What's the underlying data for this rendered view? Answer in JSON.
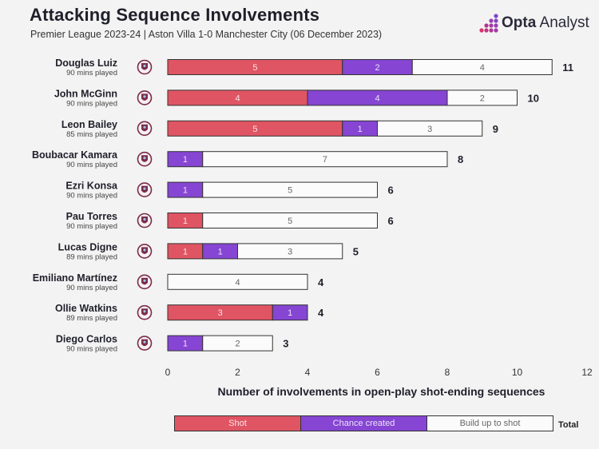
{
  "title": "Attacking Sequence Involvements",
  "subtitle": "Premier League 2023-24 | Aston Villa 1-0 Manchester City (06 December 2023)",
  "brand": {
    "bold": "Opta",
    "rest": "Analyst",
    "icon": "opta-dots-logo"
  },
  "colors": {
    "shot": "#e05563",
    "chance": "#8645d3",
    "build": "#fbfbfb",
    "club": "#7b2c4a"
  },
  "chart_data": {
    "type": "bar",
    "orientation": "horizontal",
    "stacked": true,
    "xlabel": "Number of involvements in open-play shot-ending sequences",
    "xlim": [
      0,
      12
    ],
    "xticks": [
      0,
      2,
      4,
      6,
      8,
      10,
      12
    ],
    "players": [
      {
        "name": "Douglas Luiz",
        "minutes": "90 mins played",
        "shot": 5,
        "chance": 2,
        "build": 4,
        "total": 11
      },
      {
        "name": "John McGinn",
        "minutes": "90 mins played",
        "shot": 4,
        "chance": 4,
        "build": 2,
        "total": 10
      },
      {
        "name": "Leon Bailey",
        "minutes": "85 mins played",
        "shot": 5,
        "chance": 1,
        "build": 3,
        "total": 9
      },
      {
        "name": "Boubacar Kamara",
        "minutes": "90 mins played",
        "shot": 0,
        "chance": 1,
        "build": 7,
        "total": 8
      },
      {
        "name": "Ezri Konsa",
        "minutes": "90 mins played",
        "shot": 0,
        "chance": 1,
        "build": 5,
        "total": 6
      },
      {
        "name": "Pau Torres",
        "minutes": "90 mins played",
        "shot": 1,
        "chance": 0,
        "build": 5,
        "total": 6
      },
      {
        "name": "Lucas Digne",
        "minutes": "89 mins played",
        "shot": 1,
        "chance": 1,
        "build": 3,
        "total": 5
      },
      {
        "name": "Emiliano Martínez",
        "minutes": "90 mins played",
        "shot": 0,
        "chance": 0,
        "build": 4,
        "total": 4
      },
      {
        "name": "Ollie Watkins",
        "minutes": "89 mins played",
        "shot": 3,
        "chance": 1,
        "build": 0,
        "total": 4
      },
      {
        "name": "Diego Carlos",
        "minutes": "90 mins played",
        "shot": 0,
        "chance": 1,
        "build": 2,
        "total": 3
      }
    ],
    "legend": {
      "shot": "Shot",
      "chance": "Chance created",
      "build": "Build up to shot",
      "total": "Total"
    }
  }
}
